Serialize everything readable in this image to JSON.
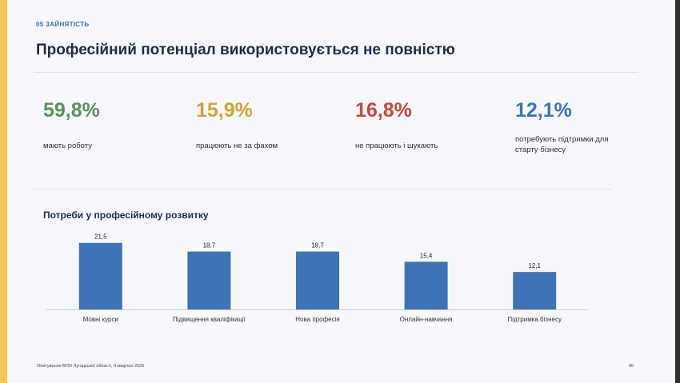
{
  "header": {
    "section_tag": "05  ЗАЙНЯТІСТЬ",
    "title": "Професійний потенціал використовується не повністю"
  },
  "stats": [
    {
      "value": "59,8%",
      "label": "мають роботу",
      "color": "#5a8f5e"
    },
    {
      "value": "15,9%",
      "label": "працюють не за фахом",
      "color": "#d1a23a"
    },
    {
      "value": "16,8%",
      "label": "не працюють і шукають",
      "color": "#c0493e"
    },
    {
      "value": "12,1%",
      "label_line1": "потребують підтримки для",
      "label_line2": "старту бізнесу",
      "color": "#3f73b5"
    }
  ],
  "chart_title": "Потреби у професійному розвитку",
  "chart_data": {
    "type": "bar",
    "categories": [
      "Мовні курси",
      "Підвищення кваліфікації",
      "Нова професія",
      "Онлайн-навчання",
      "Підтримка бізнесу"
    ],
    "values": [
      21.5,
      18.7,
      18.7,
      15.4,
      12.1
    ],
    "value_labels": [
      "21,5",
      "18,7",
      "18,7",
      "15,4",
      "12,1"
    ],
    "title": "Потреби у професійному розвитку",
    "xlabel": "",
    "ylabel": "",
    "ylim": [
      0,
      23.5
    ],
    "grid": false,
    "bar_color": "#3f73b5"
  },
  "footer": {
    "note": "Опитування ВПО Луганської області, II квартал 2026",
    "page_number": "06"
  }
}
